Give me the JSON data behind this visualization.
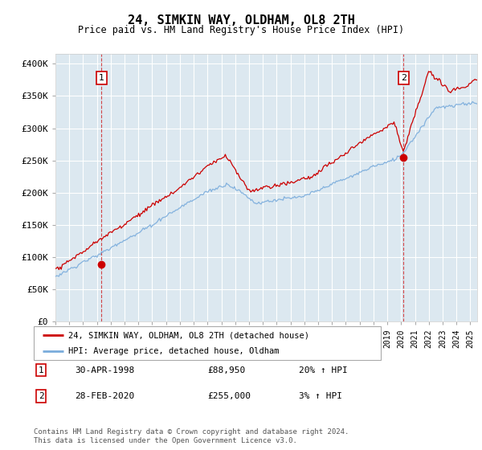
{
  "title": "24, SIMKIN WAY, OLDHAM, OL8 2TH",
  "subtitle": "Price paid vs. HM Land Registry's House Price Index (HPI)",
  "ylabel_ticks": [
    "£0",
    "£50K",
    "£100K",
    "£150K",
    "£200K",
    "£250K",
    "£300K",
    "£350K",
    "£400K"
  ],
  "ytick_values": [
    0,
    50000,
    100000,
    150000,
    200000,
    250000,
    300000,
    350000,
    400000
  ],
  "ylim": [
    0,
    415000
  ],
  "xlim_start": 1995.0,
  "xlim_end": 2025.5,
  "sale1_x": 1998.33,
  "sale1_y": 88950,
  "sale2_x": 2020.17,
  "sale2_y": 255000,
  "sale1_label": "30-APR-1998",
  "sale1_price": "£88,950",
  "sale1_hpi": "20% ↑ HPI",
  "sale2_label": "28-FEB-2020",
  "sale2_price": "£255,000",
  "sale2_hpi": "3% ↑ HPI",
  "legend_property": "24, SIMKIN WAY, OLDHAM, OL8 2TH (detached house)",
  "legend_hpi": "HPI: Average price, detached house, Oldham",
  "footnote": "Contains HM Land Registry data © Crown copyright and database right 2024.\nThis data is licensed under the Open Government Licence v3.0.",
  "color_property": "#cc0000",
  "color_hpi": "#7aacdc",
  "color_vline": "#cc0000",
  "bg_color": "#dce8f0",
  "grid_color": "#ffffff"
}
